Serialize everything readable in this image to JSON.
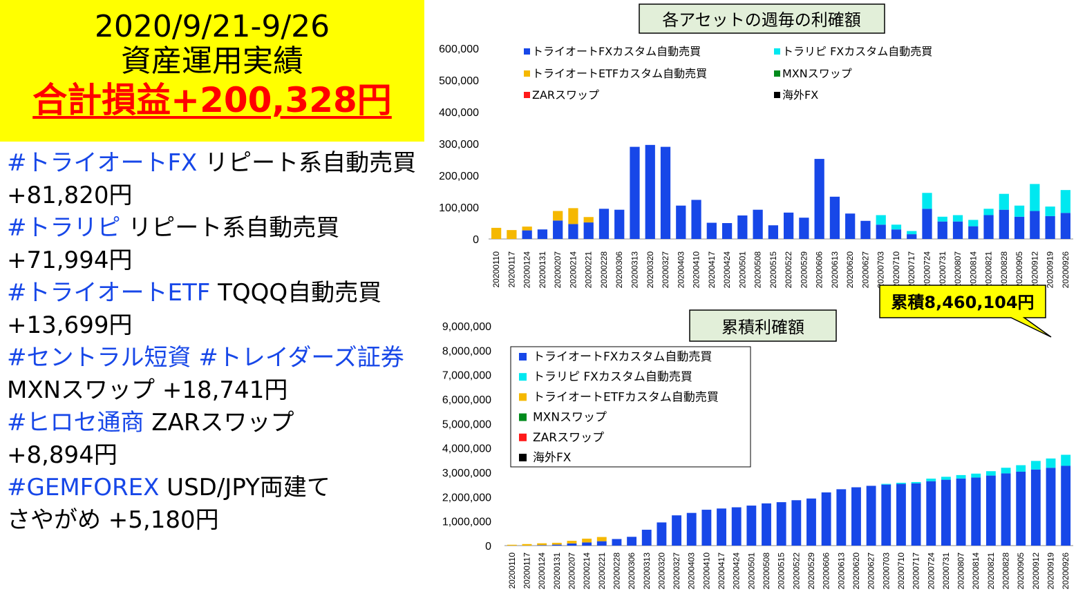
{
  "summary": {
    "period": "2020/9/21-9/26",
    "subtitle": "資産運用実績",
    "total": "合計損益+200,328円"
  },
  "lines": [
    [
      {
        "t": "#トライオートFX",
        "hl": true
      },
      {
        "t": " リピート系自動売買",
        "hl": false
      }
    ],
    [
      {
        "t": "+81,820円",
        "hl": false
      }
    ],
    [
      {
        "t": "#トラリピ",
        "hl": true
      },
      {
        "t": " リピート系自動売買",
        "hl": false
      }
    ],
    [
      {
        "t": "+71,994円",
        "hl": false
      }
    ],
    [
      {
        "t": "#トライオートETF",
        "hl": true
      },
      {
        "t": " TQQQ自動売買",
        "hl": false
      }
    ],
    [
      {
        "t": "+13,699円",
        "hl": false
      }
    ],
    [
      {
        "t": "#セントラル短資 #トレイダーズ証券",
        "hl": true
      }
    ],
    [
      {
        "t": "MXNスワップ +18,741円",
        "hl": false
      }
    ],
    [
      {
        "t": "#ヒロセ通商",
        "hl": true
      },
      {
        "t": " ZARスワップ",
        "hl": false
      }
    ],
    [
      {
        "t": "+8,894円",
        "hl": false
      }
    ],
    [
      {
        "t": "#GEMFOREX",
        "hl": true
      },
      {
        "t": " USD/JPY両建て",
        "hl": false
      }
    ],
    [
      {
        "t": "さやがめ +5,180円",
        "hl": false
      }
    ]
  ],
  "colors": {
    "fx": "#1747e8",
    "tr": "#00e8f0",
    "etf": "#f5b800",
    "mxn": "#008a1c",
    "zar": "#ff1a1a",
    "kaigai": "#000000",
    "title_bg": "#ffff00",
    "chart_title_bg": "#e2efd9"
  },
  "chart_data": [
    {
      "type": "bar",
      "stacked": true,
      "title": "各アセットの週毎の利確額",
      "ylim": [
        0,
        600000
      ],
      "yticks": [
        "0",
        "100,000",
        "200,000",
        "300,000",
        "400,000",
        "500,000",
        "600,000"
      ],
      "legend": "top",
      "grid": false,
      "categories": [
        "20200110",
        "20200117",
        "20200124",
        "20200131",
        "20200207",
        "20200214",
        "20200221",
        "20200228",
        "20200306",
        "20200313",
        "20200320",
        "20200327",
        "20200403",
        "20200410",
        "20200417",
        "20200424",
        "20200501",
        "20200508",
        "20200515",
        "20200522",
        "20200529",
        "20200606",
        "20200613",
        "20200620",
        "20200627",
        "20200703",
        "20200710",
        "20200717",
        "20200724",
        "20200731",
        "20200807",
        "20200814",
        "20200821",
        "20200828",
        "20200905",
        "20200912",
        "20200919",
        "20200926"
      ],
      "series": [
        {
          "name": "トライオートFXカスタム自動売買",
          "key": "fx",
          "values": [
            0,
            0,
            27000,
            30000,
            58000,
            47000,
            52000,
            95000,
            92000,
            290000,
            296000,
            290000,
            105000,
            123000,
            51000,
            50000,
            74000,
            92000,
            43000,
            83000,
            67000,
            252000,
            133000,
            80000,
            57000,
            45000,
            30000,
            15000,
            95000,
            55000,
            55000,
            40000,
            75000,
            92000,
            70000,
            88000,
            72000,
            82000
          ]
        },
        {
          "name": "トラリピ FXカスタム自動売買",
          "key": "tr",
          "values": [
            0,
            0,
            0,
            0,
            0,
            0,
            0,
            0,
            0,
            0,
            0,
            0,
            0,
            0,
            0,
            0,
            0,
            0,
            0,
            0,
            0,
            0,
            0,
            0,
            0,
            30000,
            15000,
            10000,
            50000,
            15000,
            20000,
            20000,
            20000,
            50000,
            35000,
            85000,
            30000,
            72000
          ]
        },
        {
          "name": "トライオートETFカスタム自動売買",
          "key": "etf",
          "values": [
            35000,
            28000,
            12000,
            0,
            30000,
            50000,
            17000,
            0,
            0,
            0,
            0,
            0,
            0,
            0,
            0,
            0,
            0,
            0,
            0,
            0,
            0,
            0,
            0,
            0,
            0,
            0,
            0,
            0,
            0,
            0,
            0,
            0,
            0,
            0,
            0,
            0,
            0,
            0
          ]
        },
        {
          "name": "MXNスワップ",
          "key": "mxn",
          "values": [
            0,
            0,
            0,
            0,
            0,
            0,
            0,
            0,
            0,
            0,
            0,
            0,
            0,
            0,
            0,
            0,
            0,
            0,
            0,
            0,
            0,
            0,
            0,
            0,
            0,
            0,
            0,
            0,
            0,
            0,
            0,
            0,
            0,
            0,
            0,
            0,
            0,
            0
          ]
        },
        {
          "name": "ZARスワップ",
          "key": "zar",
          "values": [
            0,
            0,
            0,
            0,
            0,
            0,
            0,
            0,
            0,
            0,
            0,
            0,
            0,
            0,
            0,
            0,
            0,
            0,
            0,
            0,
            0,
            0,
            0,
            0,
            0,
            0,
            0,
            0,
            0,
            0,
            0,
            0,
            0,
            0,
            0,
            0,
            0,
            0
          ]
        },
        {
          "name": "海外FX",
          "key": "kaigai",
          "values": [
            0,
            0,
            0,
            0,
            0,
            0,
            0,
            0,
            0,
            0,
            0,
            0,
            0,
            0,
            0,
            0,
            0,
            0,
            0,
            0,
            0,
            0,
            0,
            0,
            0,
            0,
            0,
            0,
            0,
            0,
            0,
            0,
            0,
            0,
            0,
            0,
            0,
            0
          ]
        }
      ]
    },
    {
      "type": "bar",
      "stacked": true,
      "title": "累積利確額",
      "annotation": "累積8,460,104円",
      "ylim": [
        0,
        9000000
      ],
      "yticks": [
        "0",
        "1,000,000",
        "2,000,000",
        "3,000,000",
        "4,000,000",
        "5,000,000",
        "6,000,000",
        "7,000,000",
        "8,000,000",
        "9,000,000"
      ],
      "legend": "top-left",
      "grid": false,
      "categories": [
        "20200110",
        "20200117",
        "20200124",
        "20200131",
        "20200207",
        "20200214",
        "20200221",
        "20200228",
        "20200306",
        "20200313",
        "20200320",
        "20200327",
        "20200403",
        "20200410",
        "20200417",
        "20200424",
        "20200501",
        "20200508",
        "20200515",
        "20200522",
        "20200529",
        "20200606",
        "20200613",
        "20200620",
        "20200627",
        "20200703",
        "20200710",
        "20200717",
        "20200724",
        "20200731",
        "20200807",
        "20200814",
        "20200821",
        "20200828",
        "20200905",
        "20200912",
        "20200919",
        "20200926"
      ],
      "series": [
        {
          "name": "トライオートFXカスタム自動売買",
          "key": "fx",
          "values": [
            0,
            0,
            20000,
            40000,
            90000,
            130000,
            180000,
            270000,
            360000,
            650000,
            950000,
            1240000,
            1340000,
            1470000,
            1520000,
            1570000,
            1640000,
            1730000,
            1780000,
            1860000,
            1930000,
            2180000,
            2310000,
            2390000,
            2450000,
            2500000,
            2530000,
            2550000,
            2640000,
            2700000,
            2750000,
            2790000,
            2870000,
            2960000,
            3030000,
            3120000,
            3190000,
            3270000
          ]
        },
        {
          "name": "トラリピ FXカスタム自動売買",
          "key": "tr",
          "values": [
            0,
            0,
            0,
            0,
            0,
            0,
            0,
            0,
            0,
            0,
            0,
            0,
            0,
            0,
            0,
            0,
            0,
            0,
            0,
            0,
            0,
            0,
            0,
            0,
            0,
            30000,
            45000,
            55000,
            105000,
            120000,
            140000,
            160000,
            180000,
            230000,
            265000,
            350000,
            380000,
            452000
          ]
        },
        {
          "name": "トライオートETFカスタム自動売買",
          "key": "etf",
          "values": [
            35000,
            63000,
            75000,
            75000,
            105000,
            155000,
            172000,
            0,
            0,
            0,
            0,
            0,
            0,
            0,
            0,
            0,
            0,
            0,
            0,
            0,
            0,
            0,
            0,
            0,
            0,
            0,
            0,
            0,
            0,
            0,
            0,
            0,
            0,
            0,
            0,
            0,
            0,
            0
          ]
        },
        {
          "name": "MXNスワップ",
          "key": "mxn",
          "values": [
            0,
            0,
            0,
            0,
            0,
            0,
            0,
            0,
            0,
            0,
            0,
            0,
            0,
            0,
            0,
            0,
            0,
            0,
            0,
            0,
            0,
            0,
            0,
            0,
            0,
            0,
            0,
            0,
            0,
            0,
            0,
            0,
            0,
            0,
            0,
            0,
            0,
            0
          ]
        },
        {
          "name": "ZARスワップ",
          "key": "zar",
          "values": [
            0,
            0,
            0,
            0,
            0,
            0,
            0,
            0,
            0,
            0,
            0,
            0,
            0,
            0,
            0,
            0,
            0,
            0,
            0,
            0,
            0,
            0,
            0,
            0,
            0,
            0,
            0,
            0,
            0,
            0,
            0,
            0,
            0,
            0,
            0,
            0,
            0,
            0
          ]
        },
        {
          "name": "海外FX",
          "key": "kaigai",
          "values": [
            0,
            0,
            0,
            0,
            0,
            0,
            0,
            0,
            0,
            0,
            0,
            0,
            0,
            0,
            0,
            0,
            0,
            0,
            0,
            0,
            0,
            0,
            0,
            0,
            0,
            0,
            0,
            0,
            0,
            0,
            0,
            0,
            0,
            0,
            0,
            0,
            0,
            0
          ]
        }
      ]
    }
  ]
}
